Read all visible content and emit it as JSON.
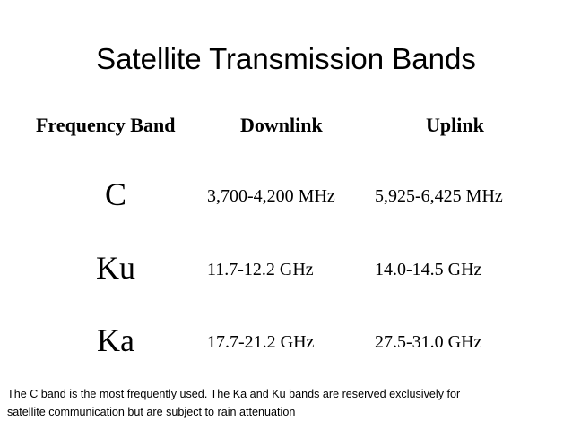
{
  "title": "Satellite Transmission Bands",
  "headers": {
    "band": "Frequency Band",
    "downlink": "Downlink",
    "uplink": "Uplink"
  },
  "rows": [
    {
      "band": "C",
      "downlink": "3,700-4,200 MHz",
      "uplink": "5,925-6,425 MHz"
    },
    {
      "band": "Ku",
      "downlink": "11.7-12.2 GHz",
      "uplink": "14.0-14.5 GHz"
    },
    {
      "band": "Ka",
      "downlink": "17.7-21.2 GHz",
      "uplink": "27.5-31.0 GHz"
    }
  ],
  "footnote": {
    "line1": "The C band is the most frequently used. The Ka and Ku bands are reserved exclusively for",
    "line2": "satellite communication but are subject to rain attenuation"
  }
}
